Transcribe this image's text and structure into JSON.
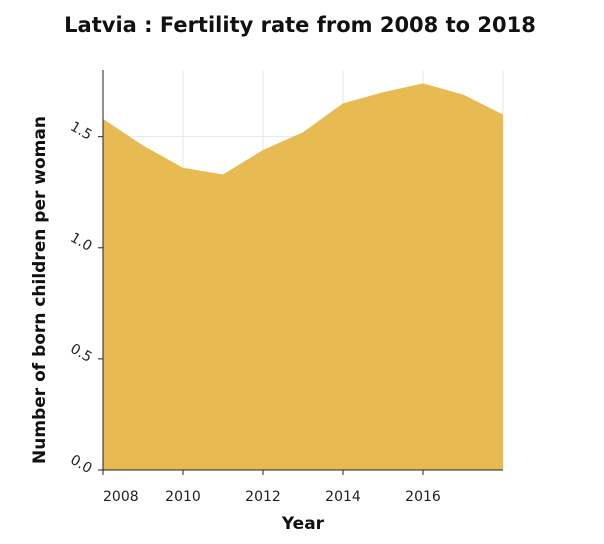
{
  "chart_data": {
    "type": "area",
    "title": "Latvia : Fertility rate from 2008 to 2018",
    "xlabel": "Year",
    "ylabel": "Number of born children per woman",
    "x": [
      2008,
      2009,
      2010,
      2011,
      2012,
      2013,
      2014,
      2015,
      2016,
      2017,
      2018
    ],
    "values": [
      1.58,
      1.46,
      1.36,
      1.33,
      1.44,
      1.52,
      1.65,
      1.7,
      1.74,
      1.69,
      1.6
    ],
    "xlim": [
      2008,
      2018
    ],
    "ylim": [
      0,
      1.8
    ],
    "xticks": [
      2008,
      2010,
      2012,
      2014,
      2016
    ],
    "xtick_labels": [
      "2008",
      "2010",
      "2012",
      "2014",
      "2016"
    ],
    "yticks": [
      0,
      0.5,
      1.0,
      1.5
    ],
    "ytick_labels": [
      "0.0",
      "0.5",
      "1.0",
      "1.5"
    ],
    "grid": true,
    "fill_color": "#e8bb52"
  }
}
